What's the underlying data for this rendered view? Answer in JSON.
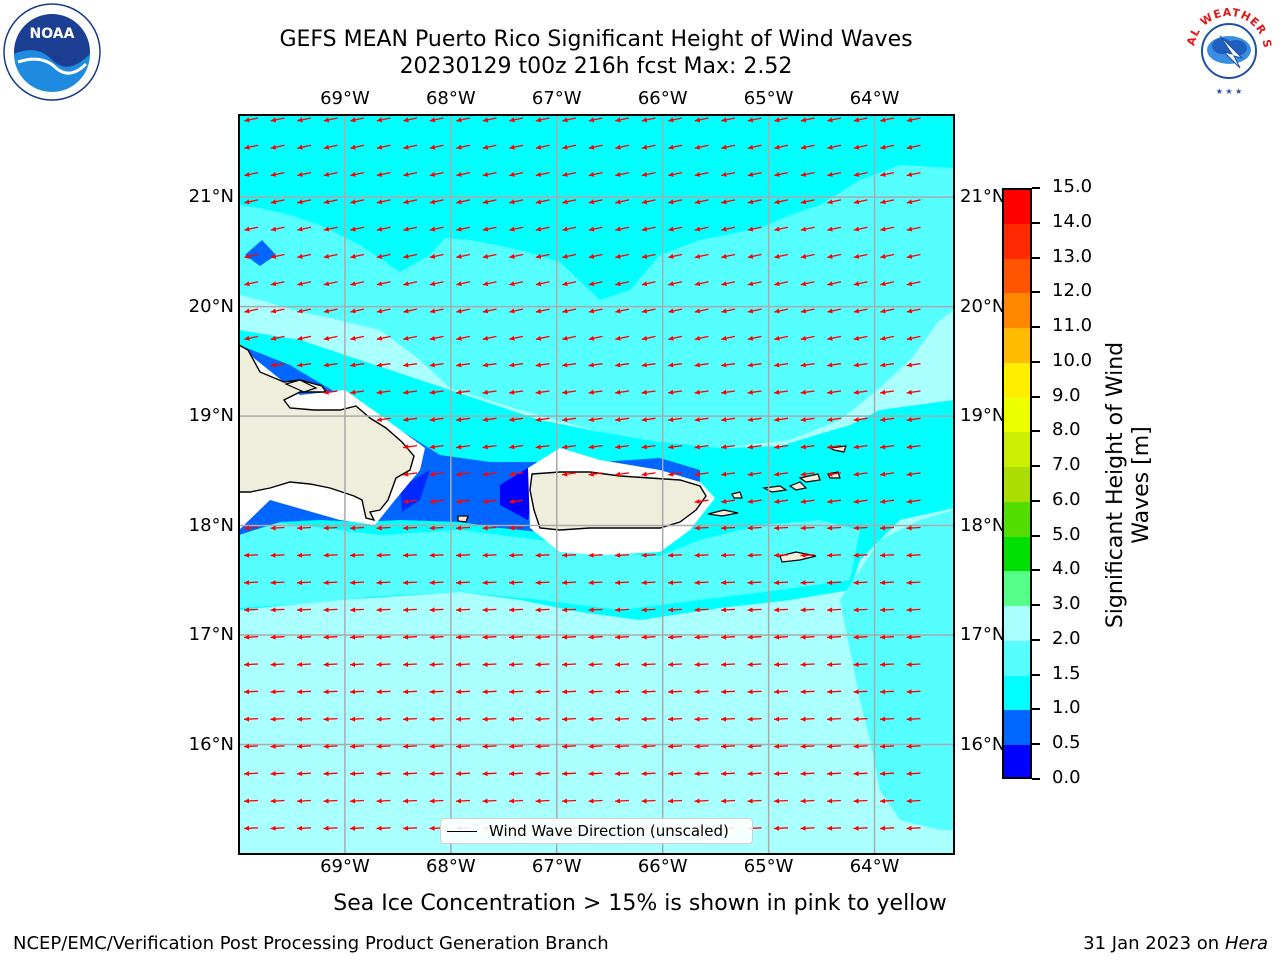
{
  "title": {
    "line1": "GEFS MEAN Puerto Rico Significant Height of Wind Waves",
    "line2": "20230129 t00z 216h fcst   Max: 2.52"
  },
  "axes": {
    "lon_labels": [
      "69°W",
      "68°W",
      "67°W",
      "66°W",
      "65°W",
      "64°W"
    ],
    "lon_values": [
      -69,
      -68,
      -67,
      -66,
      -65,
      -64
    ],
    "lat_labels": [
      "21°N",
      "20°N",
      "19°N",
      "18°N",
      "17°N",
      "16°N"
    ],
    "lat_values": [
      21,
      20,
      19,
      18,
      17,
      16
    ],
    "lon_range": [
      -70.0,
      -63.25
    ],
    "lat_range": [
      15.0,
      21.75
    ],
    "grid": true
  },
  "colorbar": {
    "title": "Significant Height of Wind Waves [m]",
    "tick_labels": [
      "0.0",
      "0.5",
      "1.0",
      "1.5",
      "2.0",
      "3.0",
      "4.0",
      "5.0",
      "6.0",
      "7.0",
      "8.0",
      "9.0",
      "10.0",
      "11.0",
      "12.0",
      "13.0",
      "14.0",
      "15.0"
    ],
    "colors": [
      "#0000ff",
      "#0066ff",
      "#00ffff",
      "#55ffff",
      "#aaffff",
      "#55ff88",
      "#00e000",
      "#55dd00",
      "#aadd00",
      "#ccee00",
      "#eeff00",
      "#ffee00",
      "#ffbb00",
      "#ff8800",
      "#ff5500",
      "#ff2a00",
      "#ff0000"
    ]
  },
  "chart_data": {
    "type": "heatmap",
    "region": "Puerto Rico",
    "variable": "Significant Height of Wind Waves",
    "units": "m",
    "forecast_date": "20230129",
    "cycle": "t00z",
    "lead_time": "216h",
    "max": 2.52,
    "value_bands": [
      {
        "level": "1.5-2.0",
        "color": "#55ffff"
      },
      {
        "level": "2.0-3.0",
        "color": "#aaffff"
      }
    ],
    "wind_direction": "towards west-southwest",
    "arrow_color": "#ff0000"
  },
  "legend": {
    "label": "Wind Wave Direction (unscaled)"
  },
  "footnote": "Sea Ice Concentration > 15% is shown in pink to yellow",
  "credit": "NCEP/EMC/Verification Post Processing Product Generation Branch",
  "run_date": {
    "date": "31 Jan 2023 on",
    "machine": "Hera"
  },
  "logos": {
    "left": "NOAA",
    "right": "NATIONAL WEATHER SERVICE"
  }
}
